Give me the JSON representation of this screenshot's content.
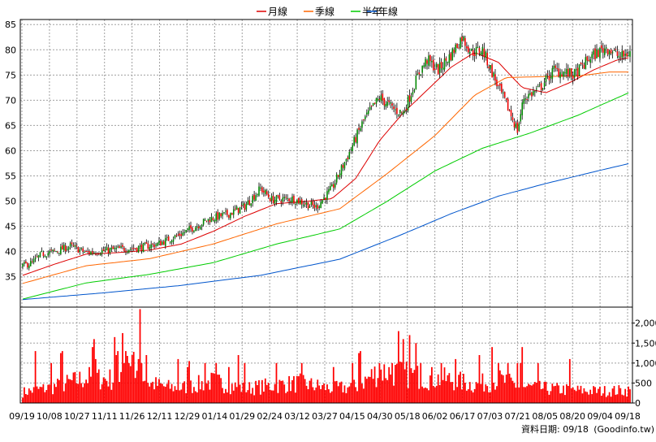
{
  "legend": {
    "month_label": "月線",
    "quarter_label": "季線",
    "half_year_label": "半年",
    "year_label": "年線"
  },
  "footer": {
    "data_date": "資料日期: 09/18",
    "source": "(Goodinfo.tw)"
  },
  "colors": {
    "up": "#008800",
    "down": "#ee0000",
    "month_ma": "#dd0000",
    "quarter_ma": "#ff6600",
    "half_year_ma": "#00cc00",
    "year_ma": "#0055cc",
    "volume": "#ff0000",
    "grid": "#a0a0a0"
  },
  "chart_data": [
    {
      "type": "candlestick",
      "title": "",
      "ylim": [
        29,
        86
      ],
      "y_ticks": [
        35,
        40,
        45,
        50,
        55,
        60,
        65,
        70,
        75,
        80,
        85
      ],
      "x_tick_labels": [
        "09/19",
        "10/08",
        "10/27",
        "11/11",
        "11/26",
        "12/11",
        "12/29",
        "01/14",
        "01/29",
        "02/24",
        "03/12",
        "03/27",
        "04/15",
        "04/30",
        "05/18",
        "06/02",
        "06/17",
        "07/03",
        "07/21",
        "08/05",
        "08/20",
        "09/04",
        "09/18"
      ],
      "price_anchors": [
        [
          0,
          37.2
        ],
        [
          6,
          37.8
        ],
        [
          12,
          39.5
        ],
        [
          20,
          40.0
        ],
        [
          30,
          41.1
        ],
        [
          40,
          39.8
        ],
        [
          52,
          40.2
        ],
        [
          60,
          40.5
        ],
        [
          72,
          40.7
        ],
        [
          85,
          41.5
        ],
        [
          100,
          43.5
        ],
        [
          118,
          46.5
        ],
        [
          130,
          47.5
        ],
        [
          140,
          49.0
        ],
        [
          150,
          52.5
        ],
        [
          157,
          50.3
        ],
        [
          170,
          50.5
        ],
        [
          185,
          48.8
        ],
        [
          195,
          52.5
        ],
        [
          205,
          59.0
        ],
        [
          215,
          66.0
        ],
        [
          225,
          70.5
        ],
        [
          235,
          68.0
        ],
        [
          240,
          67.5
        ],
        [
          250,
          75.5
        ],
        [
          255,
          78.0
        ],
        [
          262,
          76.0
        ],
        [
          270,
          79.0
        ],
        [
          277,
          82.5
        ],
        [
          283,
          79.5
        ],
        [
          290,
          80.0
        ],
        [
          300,
          72.5
        ],
        [
          306,
          68.5
        ],
        [
          312,
          64.0
        ],
        [
          316,
          70.5
        ],
        [
          325,
          72.0
        ],
        [
          335,
          76.0
        ],
        [
          348,
          75.0
        ],
        [
          358,
          78.5
        ],
        [
          368,
          80.5
        ],
        [
          377,
          78.5
        ],
        [
          383,
          79.5
        ]
      ],
      "ma_series": [
        {
          "name": "月線",
          "anchors": [
            [
              0,
              35.3
            ],
            [
              20,
              37.5
            ],
            [
              40,
              39.5
            ],
            [
              60,
              39.8
            ],
            [
              80,
              40.3
            ],
            [
              100,
              41.5
            ],
            [
              120,
              44.0
            ],
            [
              140,
              47.0
            ],
            [
              160,
              49.5
            ],
            [
              180,
              50.0
            ],
            [
              195,
              50.5
            ],
            [
              210,
              54.5
            ],
            [
              225,
              62.0
            ],
            [
              240,
              67.5
            ],
            [
              255,
              72.0
            ],
            [
              270,
              76.5
            ],
            [
              285,
              79.5
            ],
            [
              300,
              77.5
            ],
            [
              315,
              72.5
            ],
            [
              330,
              71.5
            ],
            [
              345,
              73.5
            ],
            [
              360,
              76.0
            ],
            [
              375,
              78.0
            ],
            [
              383,
              78.5
            ]
          ]
        },
        {
          "name": "季線",
          "anchors": [
            [
              0,
              33.7
            ],
            [
              40,
              37.2
            ],
            [
              80,
              38.6
            ],
            [
              120,
              41.5
            ],
            [
              160,
              45.5
            ],
            [
              200,
              48.5
            ],
            [
              230,
              55.5
            ],
            [
              260,
              63.0
            ],
            [
              285,
              71.0
            ],
            [
              305,
              74.5
            ],
            [
              330,
              74.7
            ],
            [
              350,
              74.8
            ],
            [
              370,
              75.6
            ],
            [
              383,
              75.6
            ]
          ]
        },
        {
          "name": "半年",
          "anchors": [
            [
              0,
              30.6
            ],
            [
              40,
              33.8
            ],
            [
              80,
              35.5
            ],
            [
              120,
              37.8
            ],
            [
              160,
              41.5
            ],
            [
              200,
              44.5
            ],
            [
              230,
              50.0
            ],
            [
              260,
              56.0
            ],
            [
              290,
              60.5
            ],
            [
              320,
              63.5
            ],
            [
              350,
              67.0
            ],
            [
              383,
              71.6
            ]
          ]
        },
        {
          "name": "年線",
          "anchors": [
            [
              0,
              30.5
            ],
            [
              50,
              31.8
            ],
            [
              100,
              33.3
            ],
            [
              150,
              35.3
            ],
            [
              200,
              38.5
            ],
            [
              240,
              43.5
            ],
            [
              270,
              47.5
            ],
            [
              300,
              51.0
            ],
            [
              330,
              53.5
            ],
            [
              360,
              55.8
            ],
            [
              383,
              57.5
            ]
          ]
        }
      ]
    },
    {
      "type": "bar",
      "title": "",
      "ylim": [
        0,
        2400
      ],
      "y_ticks": [
        0,
        500,
        1000,
        1500,
        2000
      ],
      "y_tick_labels": [
        "0",
        "500",
        "1,000",
        "1,500",
        "2,000"
      ],
      "volume_profile": [
        [
          0,
          300
        ],
        [
          20,
          450
        ],
        [
          40,
          700
        ],
        [
          60,
          650
        ],
        [
          70,
          1100
        ],
        [
          80,
          550
        ],
        [
          90,
          450
        ],
        [
          100,
          420
        ],
        [
          120,
          600
        ],
        [
          140,
          400
        ],
        [
          160,
          500
        ],
        [
          175,
          550
        ],
        [
          195,
          400
        ],
        [
          210,
          450
        ],
        [
          225,
          900
        ],
        [
          240,
          800
        ],
        [
          255,
          700
        ],
        [
          270,
          650
        ],
        [
          285,
          500
        ],
        [
          300,
          650
        ],
        [
          315,
          450
        ],
        [
          330,
          400
        ],
        [
          350,
          350
        ],
        [
          365,
          330
        ],
        [
          383,
          350
        ]
      ],
      "spikes": [
        [
          8,
          1300
        ],
        [
          18,
          1000
        ],
        [
          24,
          1250
        ],
        [
          25,
          1300
        ],
        [
          44,
          1400
        ],
        [
          45,
          1600
        ],
        [
          46,
          1100
        ],
        [
          58,
          1650
        ],
        [
          59,
          1200
        ],
        [
          60,
          1300
        ],
        [
          63,
          1750
        ],
        [
          64,
          1000
        ],
        [
          65,
          1300
        ],
        [
          67,
          1000
        ],
        [
          69,
          1200
        ],
        [
          70,
          1280
        ],
        [
          73,
          1100
        ],
        [
          74,
          2350
        ],
        [
          75,
          1000
        ],
        [
          78,
          1200
        ],
        [
          98,
          1100
        ],
        [
          104,
          900
        ],
        [
          105,
          1050
        ],
        [
          115,
          1000
        ],
        [
          122,
          1000
        ],
        [
          130,
          900
        ],
        [
          136,
          1200
        ],
        [
          140,
          1000
        ],
        [
          160,
          1000
        ],
        [
          176,
          1000
        ],
        [
          196,
          900
        ],
        [
          208,
          1000
        ],
        [
          212,
          1250
        ],
        [
          213,
          1300
        ],
        [
          225,
          1000
        ],
        [
          233,
          1000
        ],
        [
          237,
          1800
        ],
        [
          240,
          1600
        ],
        [
          244,
          1700
        ],
        [
          248,
          1500
        ],
        [
          251,
          1000
        ],
        [
          264,
          1000
        ],
        [
          273,
          1100
        ],
        [
          288,
          1200
        ],
        [
          296,
          1400
        ],
        [
          300,
          1000
        ],
        [
          306,
          1000
        ],
        [
          312,
          1000
        ],
        [
          314,
          1000
        ],
        [
          315,
          1400
        ],
        [
          325,
          1000
        ],
        [
          345,
          1100
        ]
      ]
    }
  ]
}
